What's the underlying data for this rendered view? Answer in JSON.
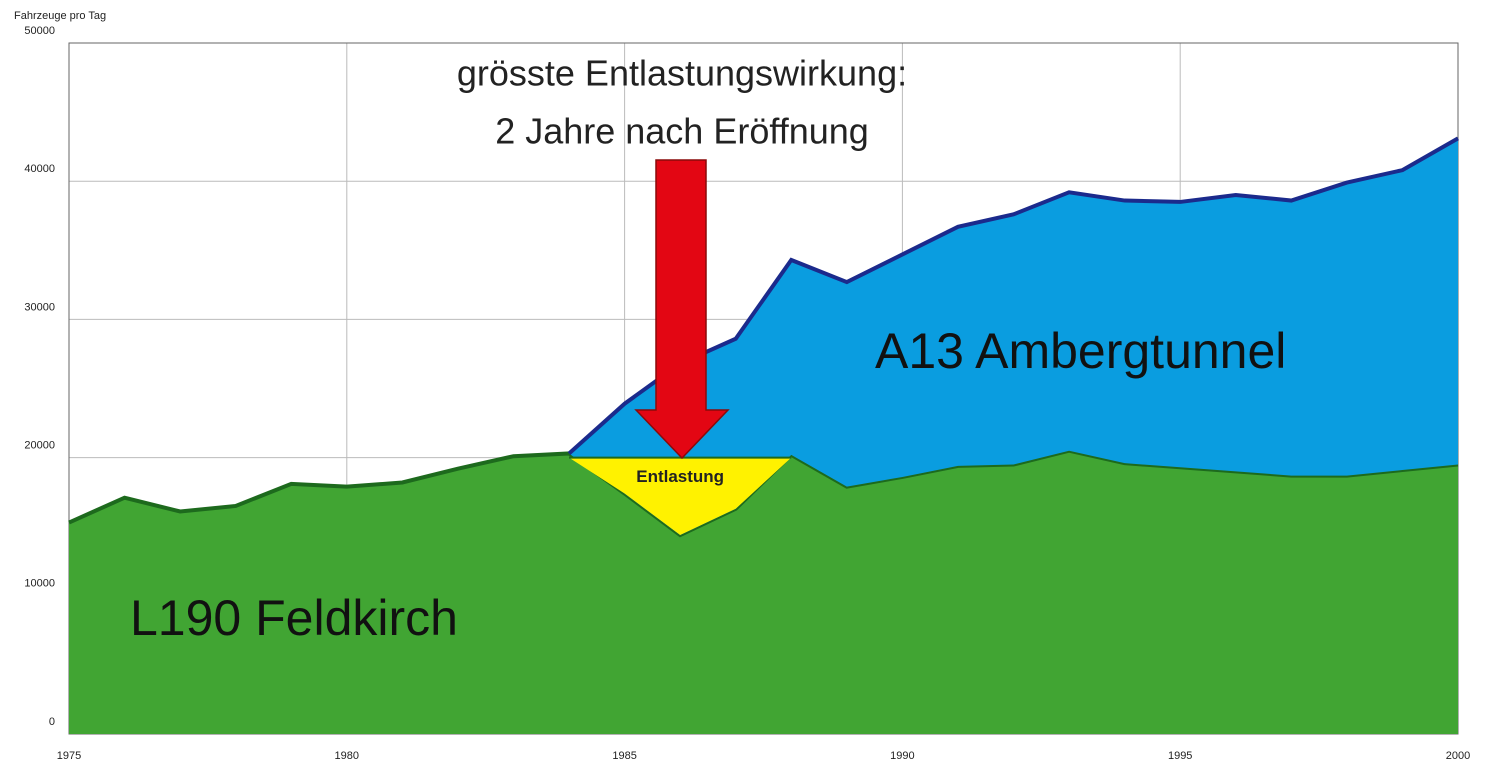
{
  "chart_data": {
    "type": "stacked_area",
    "y_axis_label": "Fahrzeuge pro Tag",
    "x": [
      1975,
      1976,
      1977,
      1978,
      1979,
      1980,
      1981,
      1982,
      1983,
      1984,
      1985,
      1986,
      1987,
      1988,
      1989,
      1990,
      1991,
      1992,
      1993,
      1994,
      1995,
      1996,
      1997,
      1998,
      1999,
      2000
    ],
    "series": [
      {
        "name": "L190 Feldkirch",
        "color": "#41a533",
        "line_color": "#1d6a1d",
        "values": [
          15300,
          17100,
          16100,
          16500,
          18100,
          17900,
          18200,
          19200,
          20100,
          20300,
          17400,
          14400,
          16300,
          20200,
          17900,
          18600,
          19400,
          19500,
          20500,
          19600,
          19300,
          19000,
          18700,
          18700,
          19100,
          19500
        ]
      },
      {
        "name": "A13 Ambergtunnel",
        "color": "#0a9de0",
        "line_color": "#1b2a8c",
        "values": [
          null,
          null,
          null,
          null,
          null,
          null,
          null,
          null,
          null,
          0,
          6500,
          12400,
          12300,
          14100,
          14800,
          16100,
          17300,
          18100,
          18700,
          19000,
          19200,
          20000,
          19900,
          21200,
          21700,
          23600
        ]
      }
    ],
    "relief": {
      "text": "Entlastung",
      "level": 20000,
      "from": 1984,
      "to": 1988,
      "color": "#fff200"
    },
    "annotation": [
      "grösste Entlastungswirkung:",
      "2 Jahre nach Eröffnung"
    ],
    "xlim": [
      1975,
      2000
    ],
    "xticks": [
      1975,
      1980,
      1985,
      1990,
      1995,
      2000
    ],
    "ylim": [
      0,
      50000
    ],
    "yticks": [
      0,
      10000,
      20000,
      30000,
      40000,
      50000
    ],
    "grid": true
  }
}
